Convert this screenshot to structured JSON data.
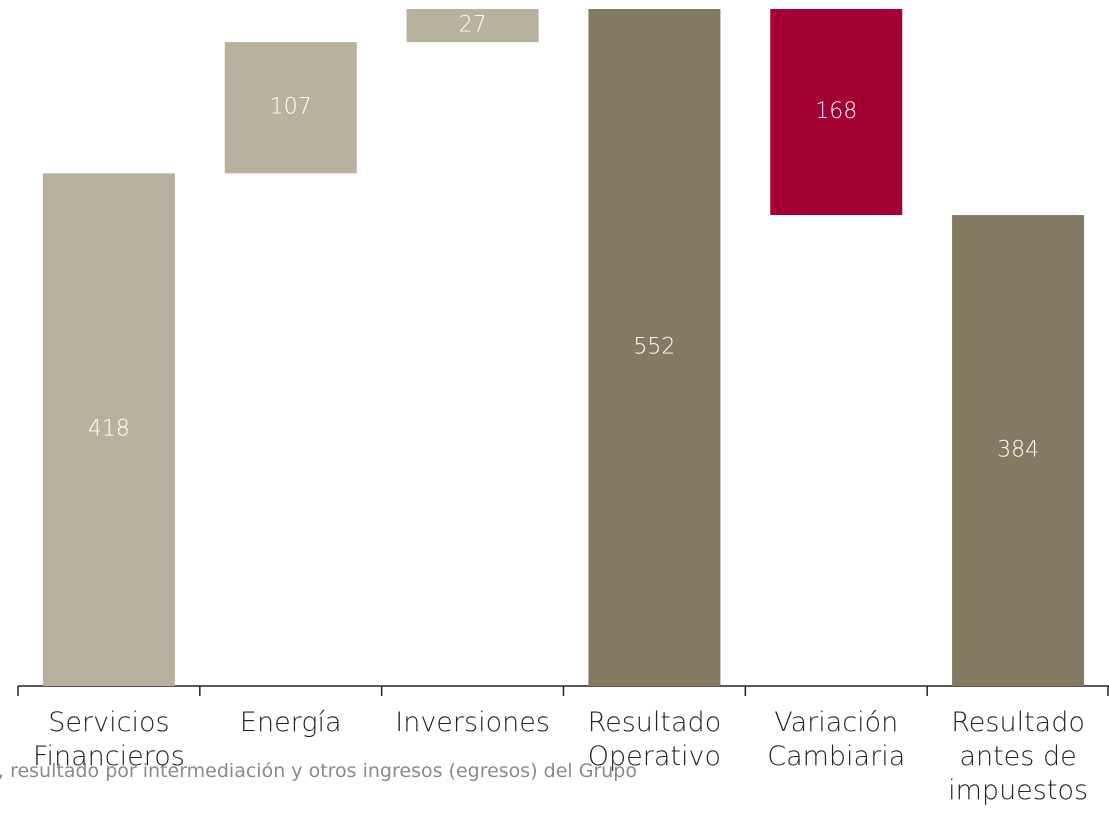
{
  "chart_data": {
    "type": "waterfall",
    "categories": [
      "Servicios Financieros",
      "Energía",
      "Inversiones",
      "Resultado Operativo",
      "Variación Cambiaria",
      "Resultado antes de impuestos"
    ],
    "values": [
      418,
      107,
      27,
      552,
      -168,
      384
    ],
    "value_labels": [
      "418",
      "107",
      "27",
      "552",
      "168",
      "384"
    ],
    "measures": [
      "relative",
      "relative",
      "relative",
      "total",
      "relative",
      "total"
    ],
    "colors": {
      "increase": "#b8b19d",
      "decrease": "#a50034",
      "total": "#847a61"
    },
    "ylim": [
      0,
      552
    ],
    "footnote": ", resultado por intermediación y otros ingresos (egresos) del Grupo"
  }
}
